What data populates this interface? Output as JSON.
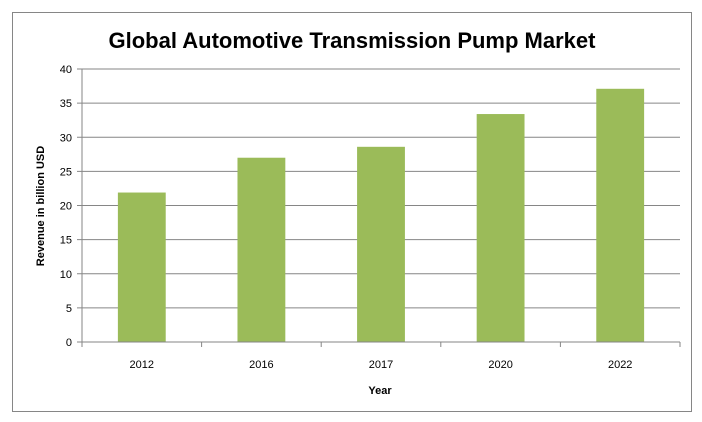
{
  "chart_data": {
    "type": "bar",
    "title": "Global Automotive Transmission Pump Market",
    "xlabel": "Year",
    "ylabel": "Revenue in billion USD",
    "categories": [
      "2012",
      "2016",
      "2017",
      "2020",
      "2022"
    ],
    "values": [
      21.9,
      27.0,
      28.6,
      33.4,
      37.1
    ],
    "ylim": [
      0,
      40
    ],
    "yticks": [
      "0",
      "5",
      "10",
      "15",
      "20",
      "25",
      "30",
      "35",
      "40"
    ],
    "grid": true,
    "legend": "none",
    "bar_color": "#9bbb59",
    "grid_color": "#868686"
  }
}
